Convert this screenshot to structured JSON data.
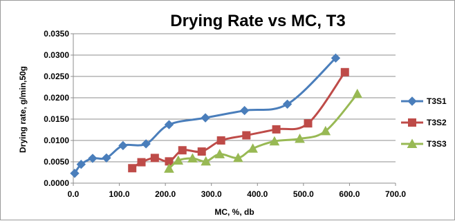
{
  "chart_data": {
    "type": "line",
    "title": "Drying Rate vs MC, T3",
    "xlabel": "MC, %, db",
    "ylabel": "Drying rate, g/min,50g",
    "xlim": [
      0,
      700
    ],
    "ylim": [
      0,
      0.035
    ],
    "xticks": [
      "0.0",
      "100.0",
      "200.0",
      "300.0",
      "400.0",
      "500.0",
      "600.0",
      "700.0"
    ],
    "yticks": [
      "0.0000",
      "0.0050",
      "0.0100",
      "0.0150",
      "0.0200",
      "0.0250",
      "0.0300",
      "0.0350"
    ],
    "xtick_values": [
      0,
      100,
      200,
      300,
      400,
      500,
      600,
      700
    ],
    "ytick_values": [
      0,
      0.005,
      0.01,
      0.015,
      0.02,
      0.025,
      0.03,
      0.035
    ],
    "grid": "horizontal",
    "legend_position": "right",
    "series": [
      {
        "name": "T3S1",
        "color": "#4a7ebb",
        "marker": "diamond",
        "x": [
          3,
          17,
          42,
          72,
          108,
          158,
          208,
          287,
          372,
          465,
          570
        ],
        "y": [
          0.0023,
          0.0044,
          0.0058,
          0.0059,
          0.0088,
          0.0092,
          0.0137,
          0.0153,
          0.017,
          0.0185,
          0.0293
        ]
      },
      {
        "name": "T3S2",
        "color": "#be4b48",
        "marker": "square",
        "x": [
          128,
          148,
          177,
          208,
          237,
          279,
          321,
          376,
          441,
          510,
          590
        ],
        "y": [
          0.0035,
          0.0049,
          0.0059,
          0.0051,
          0.0077,
          0.0074,
          0.01,
          0.0112,
          0.0126,
          0.014,
          0.026
        ]
      },
      {
        "name": "T3S3",
        "color": "#98b954",
        "marker": "triangle",
        "x": [
          208,
          228,
          259,
          288,
          318,
          358,
          390,
          437,
          492,
          548,
          617
        ],
        "y": [
          0.0034,
          0.0053,
          0.0058,
          0.0051,
          0.0068,
          0.0059,
          0.0081,
          0.0098,
          0.0104,
          0.0122,
          0.0209
        ]
      }
    ]
  }
}
